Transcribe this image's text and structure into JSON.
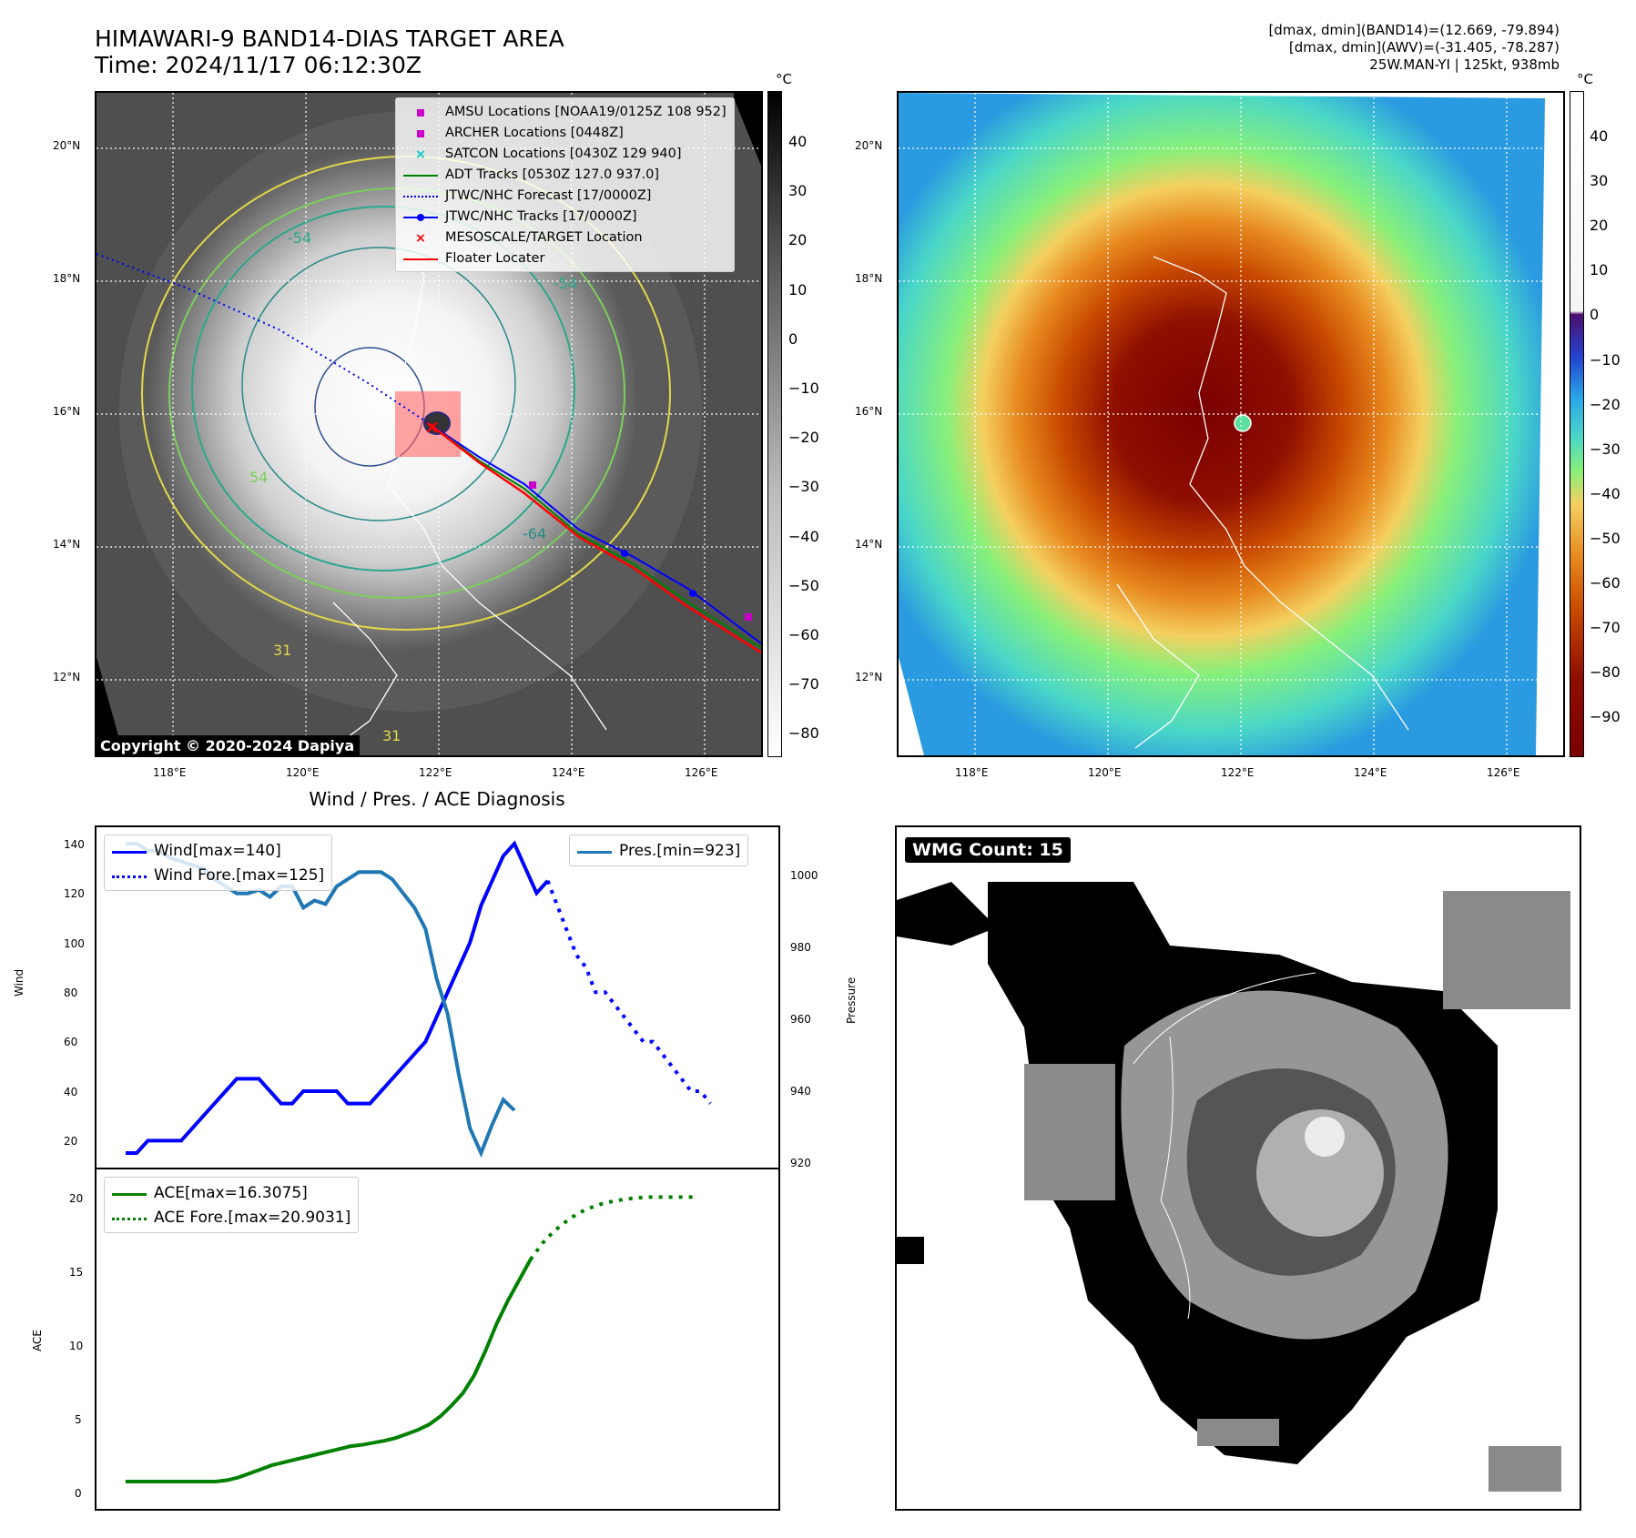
{
  "header": {
    "title_line1": "HIMAWARI-9 BAND14-DIAS TARGET AREA",
    "title_line2": "Time: 2024/11/17 06:12:30Z",
    "info_line1": "[dmax, dmin](BAND14)=(12.669, -79.894)",
    "info_line2": "[dmax, dmin](AWV)=(-31.405, -78.287)",
    "info_line3": "25W.MAN-YI | 125kt, 938mb"
  },
  "map": {
    "lon_ticks": [
      "118°E",
      "120°E",
      "122°E",
      "124°E",
      "126°E"
    ],
    "lat_ticks": [
      "20°N",
      "18°N",
      "16°N",
      "14°N",
      "12°N"
    ],
    "copyright": "Copyright © 2020-2024 Dapiya",
    "contour_labels": [
      "-54",
      "-54",
      "-64",
      "31",
      "31",
      "54"
    ],
    "legend": [
      {
        "label": "AMSU Locations [NOAA19/0125Z 108 952]",
        "color": "#cc00cc",
        "style": "square"
      },
      {
        "label": "ARCHER Locations [0448Z]",
        "color": "#cc00cc",
        "style": "square"
      },
      {
        "label": "SATCON Locations [0430Z 129 940]",
        "color": "#00cccc",
        "style": "x"
      },
      {
        "label": "ADT Tracks [0530Z 127.0 937.0]",
        "color": "#008000",
        "style": "line"
      },
      {
        "label": "JTWC/NHC Forecast [17/0000Z]",
        "color": "#0000ff",
        "style": "dotted"
      },
      {
        "label": "JTWC/NHC Tracks [17/0000Z]",
        "color": "#0000ff",
        "style": "line-dot"
      },
      {
        "label": "MESOSCALE/TARGET Location",
        "color": "#ff0000",
        "style": "x"
      },
      {
        "label": "Floater Locater",
        "color": "#ff0000",
        "style": "line"
      }
    ]
  },
  "colorbars": {
    "unit": "°C",
    "left_ticks": [
      "40",
      "30",
      "20",
      "10",
      "0",
      "−10",
      "−20",
      "−30",
      "−40",
      "−50",
      "−60",
      "−70",
      "−80"
    ],
    "right_ticks": [
      "40",
      "30",
      "20",
      "10",
      "0",
      "−10",
      "−20",
      "−30",
      "−40",
      "−50",
      "−60",
      "−70",
      "−80",
      "−90"
    ]
  },
  "diagnosis": {
    "title": "Wind / Pres. / ACE Diagnosis",
    "wind_ylabel": "Wind",
    "pres_ylabel": "Pressure",
    "ace_ylabel": "ACE",
    "legend_wind": "Wind[max=140]",
    "legend_wind_fore": "Wind Fore.[max=125]",
    "legend_pres": "Pres.[min=923]",
    "legend_ace": "ACE[max=16.3075]",
    "legend_ace_fore": "ACE Fore.[max=20.9031]",
    "wind_ticks": [
      "140",
      "120",
      "100",
      "80",
      "60",
      "40",
      "20"
    ],
    "pres_ticks": [
      "1000",
      "980",
      "960",
      "940",
      "920"
    ],
    "ace_ticks": [
      "20",
      "15",
      "10",
      "5",
      "0"
    ],
    "wmg_label": "WMG Count: 15"
  },
  "chart_data": [
    {
      "type": "line",
      "title": "Wind / Pres. / ACE Diagnosis",
      "ylabel": "Wind",
      "ylim": [
        15,
        143
      ],
      "series": [
        {
          "name": "Wind[max=140]",
          "color": "#0000ff",
          "values": [
            15,
            15,
            20,
            20,
            20,
            20,
            25,
            30,
            35,
            40,
            45,
            45,
            45,
            40,
            35,
            35,
            40,
            40,
            40,
            40,
            35,
            35,
            35,
            40,
            45,
            50,
            55,
            60,
            70,
            80,
            90,
            100,
            115,
            125,
            135,
            140,
            130,
            120,
            125
          ]
        },
        {
          "name": "Wind Fore.[max=125]",
          "color": "#0000ff",
          "style": "dotted",
          "values": [
            125,
            115,
            105,
            95,
            90,
            80,
            80,
            75,
            70,
            65,
            60,
            60,
            55,
            50,
            45,
            40,
            40,
            35
          ]
        }
      ]
    },
    {
      "type": "line",
      "ylabel": "Pressure",
      "ylim": [
        917,
        1010
      ],
      "series": [
        {
          "name": "Pres.[min=923]",
          "color": "#1f77b4",
          "values": [
            1010,
            1010,
            1008,
            1008,
            1006,
            1005,
            1004,
            1003,
            1000,
            998,
            996,
            996,
            997,
            995,
            998,
            998,
            992,
            994,
            993,
            998,
            1000,
            1002,
            1002,
            1002,
            1000,
            996,
            992,
            986,
            972,
            962,
            945,
            930,
            923,
            931,
            938,
            935
          ]
        }
      ]
    },
    {
      "type": "line",
      "ylabel": "ACE",
      "ylim": [
        -1,
        22
      ],
      "series": [
        {
          "name": "ACE[max=16.3075]",
          "color": "#008000",
          "values": [
            0,
            0,
            0,
            0,
            0,
            0,
            0,
            0,
            0,
            0.1,
            0.3,
            0.6,
            0.9,
            1.2,
            1.4,
            1.6,
            1.8,
            2.0,
            2.2,
            2.4,
            2.6,
            2.7,
            2.85,
            3.0,
            3.2,
            3.5,
            3.8,
            4.2,
            4.8,
            5.6,
            6.5,
            7.8,
            9.6,
            11.6,
            13.3,
            14.8,
            16.3075
          ]
        },
        {
          "name": "ACE Fore.[max=20.9031]",
          "color": "#008000",
          "style": "dotted",
          "values": [
            16.3075,
            17.5,
            18.4,
            19.1,
            19.7,
            20.1,
            20.4,
            20.6,
            20.75,
            20.85,
            20.9031,
            20.9031,
            20.9031,
            20.9031,
            20.9031
          ]
        }
      ]
    }
  ]
}
